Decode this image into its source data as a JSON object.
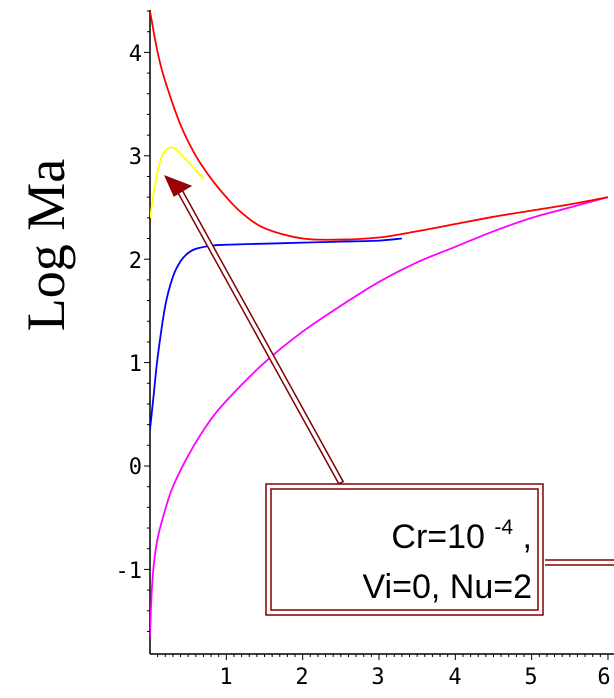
{
  "chart_data": {
    "type": "line",
    "title": "",
    "xlabel": "",
    "ylabel": "Log Ma",
    "xlim": [
      0,
      6
    ],
    "ylim": [
      -1.65,
      4.4
    ],
    "x_ticks": [
      "1",
      "2",
      "3",
      "4",
      "5",
      "6"
    ],
    "y_ticks": [
      "-1",
      "0",
      "1",
      "2",
      "3",
      "4"
    ],
    "grid": false,
    "legend": "none",
    "series": [
      {
        "color": "#ff0000",
        "x": [
          0,
          0.1,
          0.2,
          0.4,
          0.6,
          0.8,
          1.0,
          1.2,
          1.5,
          2.0,
          2.5,
          3.0,
          3.5,
          4.0,
          4.5,
          5.0,
          5.5,
          6.0
        ],
        "values": [
          4.4,
          4.0,
          3.72,
          3.3,
          3.0,
          2.78,
          2.6,
          2.45,
          2.3,
          2.2,
          2.19,
          2.21,
          2.27,
          2.34,
          2.41,
          2.47,
          2.53,
          2.6
        ]
      },
      {
        "color": "#ffff00",
        "x": [
          0,
          0.05,
          0.1,
          0.15,
          0.2,
          0.3,
          0.4,
          0.5,
          0.6,
          0.7
        ],
        "values": [
          2.4,
          2.65,
          2.85,
          2.98,
          3.05,
          3.08,
          3.02,
          2.94,
          2.86,
          2.78
        ]
      },
      {
        "color": "#0000ff",
        "x": [
          0,
          0.05,
          0.1,
          0.2,
          0.3,
          0.4,
          0.5,
          0.6,
          0.8,
          1.0,
          1.5,
          2.0,
          2.5,
          3.0,
          3.3
        ],
        "values": [
          0.35,
          0.7,
          1.05,
          1.55,
          1.83,
          1.98,
          2.06,
          2.1,
          2.13,
          2.14,
          2.15,
          2.16,
          2.17,
          2.18,
          2.2
        ]
      },
      {
        "color": "#ff00ff",
        "x": [
          0,
          0.02,
          0.05,
          0.1,
          0.2,
          0.3,
          0.5,
          0.75,
          1.0,
          1.5,
          2.0,
          2.5,
          3.0,
          3.5,
          4.0,
          4.5,
          5.0,
          5.5,
          6.0
        ],
        "values": [
          -1.65,
          -1.25,
          -0.95,
          -0.7,
          -0.42,
          -0.2,
          0.1,
          0.4,
          0.63,
          1.0,
          1.3,
          1.55,
          1.78,
          1.97,
          2.12,
          2.27,
          2.4,
          2.5,
          2.6
        ]
      }
    ],
    "annotations": [
      {
        "text_main": "Cr=10",
        "text_sup": "-4",
        "text_tail": ",",
        "text_line2": "Vi=0, Nu=2",
        "points_to": [
          0.22,
          2.92
        ]
      }
    ]
  }
}
